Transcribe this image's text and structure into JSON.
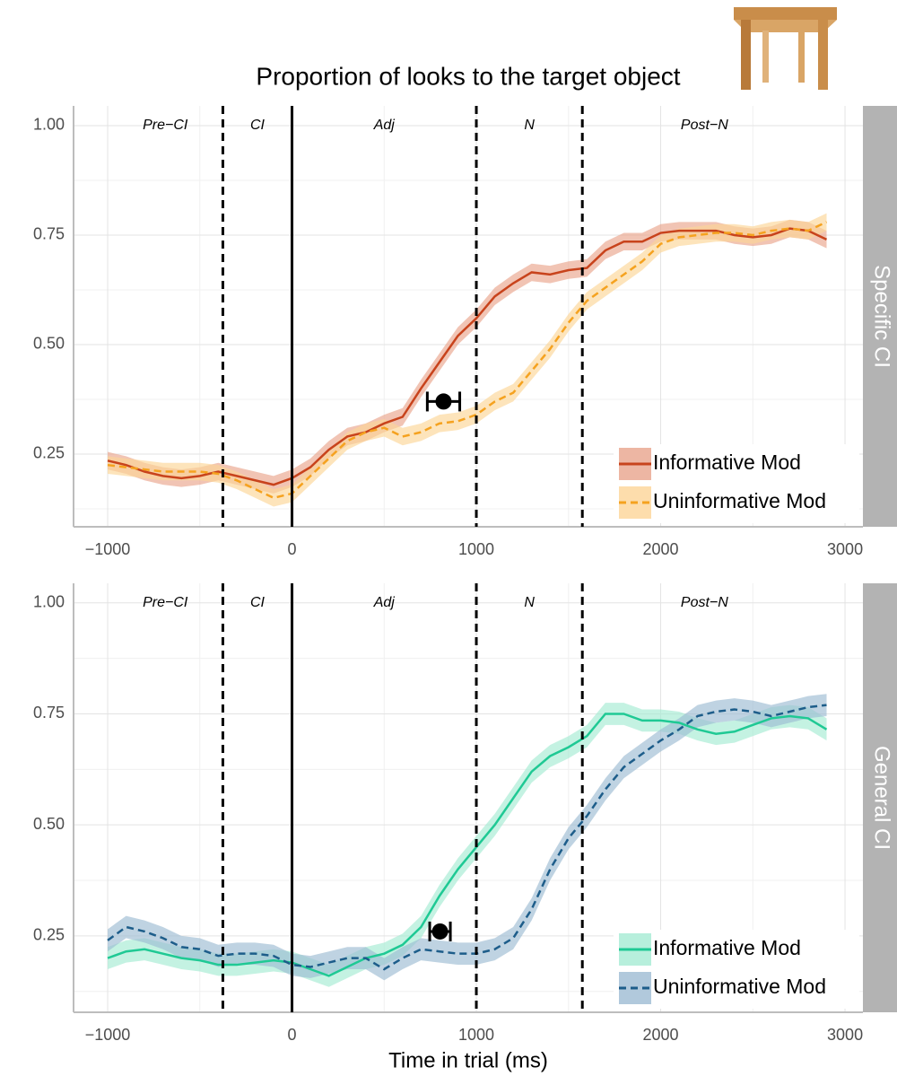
{
  "chart_data": [
    {
      "type": "line",
      "title": "Proportion of looks to the target object",
      "facet": "Specific CI",
      "x": [
        -1000,
        -900,
        -800,
        -700,
        -600,
        -500,
        -400,
        -300,
        -200,
        -100,
        0,
        100,
        200,
        300,
        400,
        500,
        600,
        700,
        800,
        900,
        1000,
        1100,
        1200,
        1300,
        1400,
        1500,
        1600,
        1700,
        1800,
        1900,
        2000,
        2100,
        2200,
        2300,
        2400,
        2500,
        2600,
        2700,
        2800,
        2900
      ],
      "series": [
        {
          "name": "Informative Mod",
          "color": "#c8431c",
          "ribbon_color": "#e9a48c",
          "dashed": false,
          "ci": 0.02,
          "values": [
            0.235,
            0.225,
            0.21,
            0.2,
            0.195,
            0.2,
            0.21,
            0.2,
            0.19,
            0.18,
            0.195,
            0.22,
            0.26,
            0.29,
            0.3,
            0.32,
            0.335,
            0.4,
            0.46,
            0.52,
            0.56,
            0.61,
            0.64,
            0.665,
            0.66,
            0.67,
            0.675,
            0.715,
            0.735,
            0.735,
            0.755,
            0.76,
            0.76,
            0.76,
            0.75,
            0.745,
            0.75,
            0.765,
            0.76,
            0.74
          ]
        },
        {
          "name": "Uninformative Mod",
          "color": "#f5a21f",
          "ribbon_color": "#fcd597",
          "dashed": true,
          "ci": 0.02,
          "values": [
            0.225,
            0.22,
            0.215,
            0.21,
            0.21,
            0.21,
            0.205,
            0.19,
            0.17,
            0.15,
            0.16,
            0.2,
            0.24,
            0.28,
            0.3,
            0.31,
            0.29,
            0.3,
            0.32,
            0.325,
            0.34,
            0.37,
            0.39,
            0.44,
            0.49,
            0.55,
            0.6,
            0.63,
            0.66,
            0.69,
            0.73,
            0.745,
            0.75,
            0.755,
            0.755,
            0.75,
            0.76,
            0.765,
            0.76,
            0.78
          ]
        }
      ],
      "point": {
        "x": 822,
        "y": 0.37,
        "xerr": 88
      },
      "regions": [
        "Pre−CI",
        "CI",
        "Adj",
        "N",
        "Post−N"
      ],
      "boundaries": [
        -375,
        0,
        1000,
        1575
      ],
      "boundary_solid": [
        false,
        true,
        false,
        false
      ],
      "xlim": [
        -1185,
        3097
      ],
      "ylim": [
        0.084,
        1.045
      ],
      "xticks": [
        {
          "value": -1000,
          "label": "−1000"
        },
        0,
        1000,
        2000,
        3000
      ],
      "yticks": [
        {
          "value": 1,
          "label": "1.00"
        },
        {
          "value": 0.75,
          "label": "0.75"
        },
        {
          "value": 0.5,
          "label": "0.50"
        },
        {
          "value": 0.25,
          "label": "0.25"
        }
      ],
      "grid": true,
      "legend": "lower right"
    },
    {
      "type": "line",
      "facet": "General CI",
      "xlabel": "Time in trial (ms)",
      "x": [
        -1000,
        -900,
        -800,
        -700,
        -600,
        -500,
        -400,
        -300,
        -200,
        -100,
        0,
        100,
        200,
        300,
        400,
        500,
        600,
        700,
        800,
        900,
        1000,
        1100,
        1200,
        1300,
        1400,
        1500,
        1600,
        1700,
        1800,
        1900,
        2000,
        2100,
        2200,
        2300,
        2400,
        2500,
        2600,
        2700,
        2800,
        2900
      ],
      "series": [
        {
          "name": "Informative Mod",
          "color": "#1fc994",
          "ribbon_color": "#a5ebd3",
          "dashed": false,
          "ci": 0.025,
          "values": [
            0.2,
            0.215,
            0.22,
            0.21,
            0.2,
            0.195,
            0.185,
            0.185,
            0.19,
            0.195,
            0.19,
            0.175,
            0.16,
            0.18,
            0.2,
            0.21,
            0.23,
            0.27,
            0.34,
            0.4,
            0.45,
            0.5,
            0.56,
            0.62,
            0.655,
            0.675,
            0.7,
            0.75,
            0.75,
            0.735,
            0.735,
            0.73,
            0.715,
            0.705,
            0.71,
            0.725,
            0.74,
            0.745,
            0.74,
            0.715
          ]
        },
        {
          "name": "Uninformative Mod",
          "color": "#1d5d8a",
          "ribbon_color": "#9dbcd3",
          "dashed": true,
          "ci": 0.025,
          "values": [
            0.24,
            0.27,
            0.26,
            0.245,
            0.225,
            0.22,
            0.205,
            0.21,
            0.21,
            0.205,
            0.185,
            0.18,
            0.19,
            0.2,
            0.2,
            0.175,
            0.2,
            0.22,
            0.215,
            0.21,
            0.21,
            0.22,
            0.245,
            0.31,
            0.4,
            0.47,
            0.52,
            0.58,
            0.63,
            0.66,
            0.69,
            0.715,
            0.745,
            0.755,
            0.76,
            0.755,
            0.745,
            0.755,
            0.765,
            0.77
          ]
        }
      ],
      "point": {
        "x": 803,
        "y": 0.26,
        "xerr": 56
      },
      "regions": [
        "Pre−CI",
        "CI",
        "Adj",
        "N",
        "Post−N"
      ],
      "boundaries": [
        -375,
        0,
        1000,
        1575
      ],
      "boundary_solid": [
        false,
        true,
        false,
        false
      ],
      "xlim": [
        -1185,
        3097
      ],
      "ylim": [
        0.078,
        1.044
      ],
      "xticks": [
        {
          "value": -1000,
          "label": "−1000"
        },
        0,
        1000,
        2000,
        3000
      ],
      "yticks": [
        {
          "value": 1,
          "label": "1.00"
        },
        {
          "value": 0.75,
          "label": "0.75"
        },
        {
          "value": 0.5,
          "label": "0.50"
        },
        {
          "value": 0.25,
          "label": "0.25"
        }
      ],
      "grid": true,
      "legend": "lower right"
    }
  ]
}
